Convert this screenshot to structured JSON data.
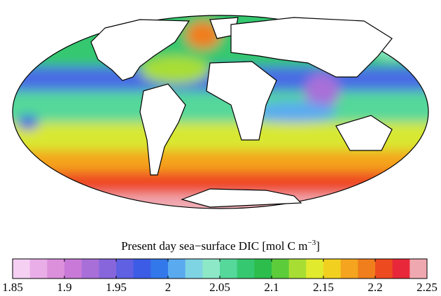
{
  "map": {
    "title": "Present day sea−surface DIC [mol C m",
    "title_exponent": "−3",
    "title_end": "]"
  },
  "colorbar": {
    "range": [
      1.85,
      2.25
    ],
    "ticks": [
      1.85,
      1.9,
      1.95,
      2,
      2.05,
      2.1,
      2.15,
      2.2,
      2.25
    ],
    "colors": [
      "#f5d0f3",
      "#e9aee8",
      "#dc90dc",
      "#c97ad8",
      "#a86fd8",
      "#8766dc",
      "#5f60e2",
      "#3c5ce6",
      "#3378ea",
      "#5aaaf0",
      "#7fd4e4",
      "#8de8c8",
      "#55d89a",
      "#36c870",
      "#2cbd4c",
      "#5ccc3a",
      "#a8de34",
      "#e2ea2e",
      "#f2d020",
      "#f4a41e",
      "#f07e1c",
      "#ee4a20",
      "#e8283a",
      "#f0a8b0"
    ]
  }
}
